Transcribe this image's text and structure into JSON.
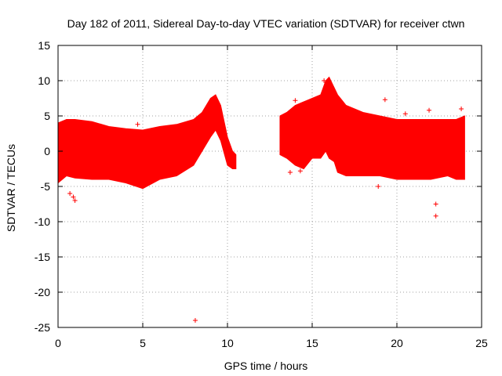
{
  "chart_data": {
    "type": "scatter",
    "title": "Day 182 of 2011, Sidereal Day-to-day VTEC variation (SDTVAR) for receiver ctwn",
    "xlabel": "GPS time / hours",
    "ylabel": "SDTVAR / TECUs",
    "xlim": [
      0,
      25
    ],
    "ylim": [
      -25,
      15
    ],
    "x_ticks": [
      0,
      5,
      10,
      15,
      20,
      25
    ],
    "y_ticks": [
      -25,
      -20,
      -15,
      -10,
      -5,
      0,
      5,
      10,
      15
    ],
    "grid": true,
    "marker": "+",
    "series_color": "#ff0000",
    "envelope": {
      "x": [
        0,
        0.5,
        1,
        2,
        3,
        4,
        5,
        6,
        7,
        8,
        8.5,
        9,
        9.3,
        9.6,
        10,
        10.3,
        10.5
      ],
      "upper": [
        4,
        4.5,
        4.5,
        4.2,
        3.5,
        3.2,
        3,
        3.5,
        3.8,
        4.5,
        5.5,
        7.5,
        8,
        6.5,
        2,
        0,
        -0.5
      ],
      "lower": [
        -4.5,
        -3.5,
        -3.8,
        -4,
        -4,
        -4.5,
        -5.3,
        -4,
        -3.5,
        -2,
        0,
        2,
        3,
        1.5,
        -2,
        -2.5,
        -2.5
      ]
    },
    "envelope2": {
      "x": [
        13.1,
        13.5,
        14,
        14.5,
        15,
        15.5,
        15.8,
        16,
        16.3,
        16.5,
        17,
        18,
        19,
        20,
        21,
        22,
        23,
        23.5,
        24
      ],
      "upper": [
        5,
        5.5,
        6.5,
        7,
        7.5,
        8,
        10,
        10.5,
        9,
        8,
        6.5,
        5.5,
        5,
        4.5,
        4.5,
        4.5,
        4.5,
        4.5,
        5
      ],
      "lower": [
        -0.5,
        -1,
        -2,
        -2.5,
        -1,
        -1,
        0,
        -1,
        -1.5,
        -3,
        -3.5,
        -3.5,
        -3.5,
        -4,
        -4,
        -4,
        -3.5,
        -4,
        -4
      ]
    },
    "outliers": [
      {
        "x": 8.1,
        "y": -24
      },
      {
        "x": 1.0,
        "y": -7
      },
      {
        "x": 0.9,
        "y": -6.5
      },
      {
        "x": 0.7,
        "y": -6
      },
      {
        "x": 4.7,
        "y": 3.8
      },
      {
        "x": 14.0,
        "y": 7.2
      },
      {
        "x": 15.7,
        "y": 10
      },
      {
        "x": 18.9,
        "y": -5
      },
      {
        "x": 19.3,
        "y": 7.3
      },
      {
        "x": 20.5,
        "y": 5.3
      },
      {
        "x": 21.9,
        "y": 5.8
      },
      {
        "x": 22.3,
        "y": -9.2
      },
      {
        "x": 22.3,
        "y": -7.5
      },
      {
        "x": 23.8,
        "y": 6
      },
      {
        "x": 13.7,
        "y": -3
      },
      {
        "x": 14.3,
        "y": -2.8
      }
    ]
  }
}
